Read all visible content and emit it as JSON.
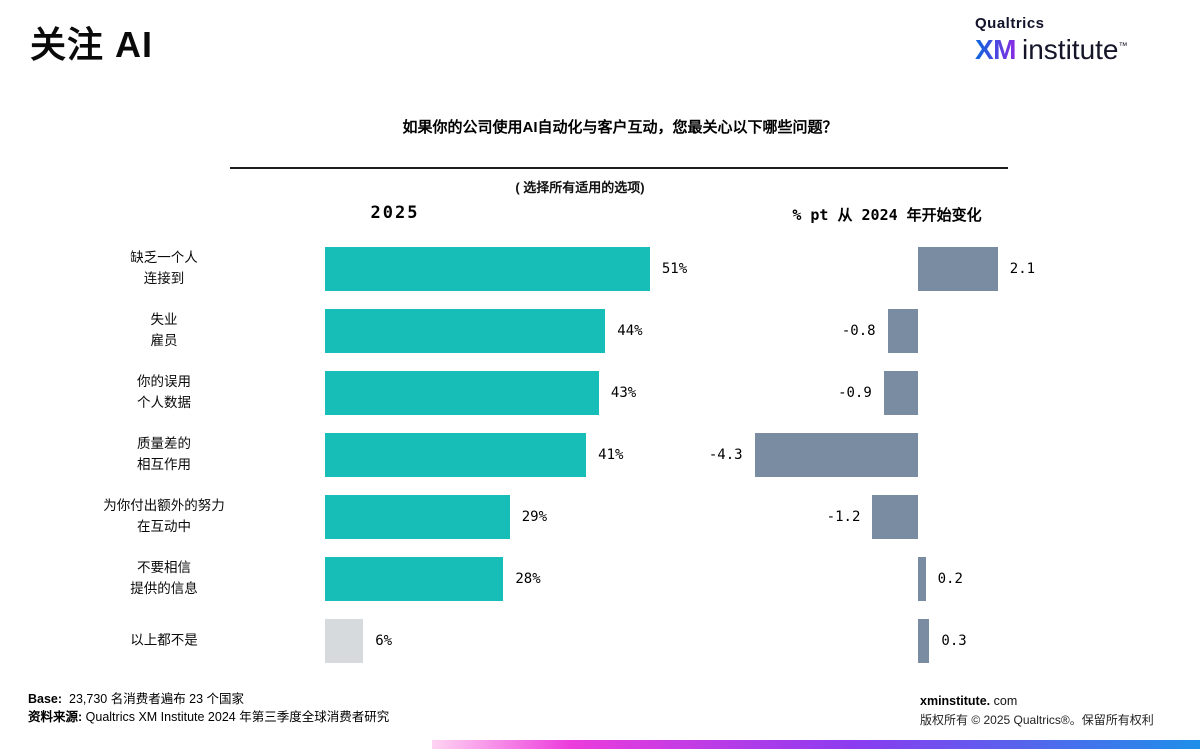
{
  "page_title": "关注 AI",
  "logo": {
    "brand": "Qualtrics",
    "xm": "XM",
    "institute": "institute",
    "tm": "™"
  },
  "chart_data": {
    "type": "bar",
    "orientation": "horizontal",
    "title": "如果你的公司使用AI自动化与客户互动，您最关心以下哪些问题？",
    "subtitle": "( 选择所有适用的选项)",
    "panels": [
      {
        "header": "2025",
        "unit": "%"
      },
      {
        "header": "% pt 从 2024 年开始变化",
        "unit": "pt"
      }
    ],
    "categories": [
      "缺乏一个人 连接到",
      "失业 雇员",
      "你的误用 个人数据",
      "质量差的 相互作用",
      "为你付出额外的努力 在互动中",
      "不要相信 提供的信息",
      "以上都不是"
    ],
    "series": [
      {
        "name": "2025",
        "values": [
          51,
          44,
          43,
          41,
          29,
          28,
          6
        ]
      },
      {
        "name": "% pt 从 2024 年开始变化",
        "values": [
          2.1,
          -0.8,
          -0.9,
          -4.3,
          -1.2,
          0.2,
          0.3
        ]
      }
    ],
    "rows": [
      {
        "label": [
          "缺乏一个人",
          "连接到"
        ],
        "value": 51,
        "value_label": "51%",
        "change": 2.1,
        "change_label": "2.1"
      },
      {
        "label": [
          "失业",
          "雇员"
        ],
        "value": 44,
        "value_label": "44%",
        "change": -0.8,
        "change_label": "-0.8"
      },
      {
        "label": [
          "你的误用",
          "个人数据"
        ],
        "value": 43,
        "value_label": "43%",
        "change": -0.9,
        "change_label": "-0.9"
      },
      {
        "label": [
          "质量差的",
          "相互作用"
        ],
        "value": 41,
        "value_label": "41%",
        "change": -4.3,
        "change_label": "-4.3"
      },
      {
        "label": [
          "为你付出额外的努力",
          "在互动中"
        ],
        "value": 29,
        "value_label": "29%",
        "change": -1.2,
        "change_label": "-1.2"
      },
      {
        "label": [
          "不要相信",
          "提供的信息"
        ],
        "value": 28,
        "value_label": "28%",
        "change": 0.2,
        "change_label": "0.2"
      },
      {
        "label": [
          "以上都不是"
        ],
        "value": 6,
        "value_label": "6%",
        "change": 0.3,
        "change_label": "0.3",
        "muted": true
      }
    ],
    "colors": {
      "bar": "#17BEB8",
      "bar_muted": "#D6DADD",
      "change_bar": "#7A8CA2"
    },
    "xlim_left_pct": [
      0,
      55
    ],
    "xlim_right_pt": [
      -4.5,
      2.5
    ],
    "grid": false,
    "legend": false
  },
  "footer": {
    "base_label": "Base:",
    "base_text": "23,730 名消费者遍布 23 个国家",
    "source_label": "资料来源:",
    "source_text": "Qualtrics XM Institute 2024 年第三季度全球消费者研究",
    "site_bold": "xminstitute.",
    "site_rest": "com",
    "copyright": "版权所有 © 2025 Qualtrics®。保留所有权利"
  }
}
